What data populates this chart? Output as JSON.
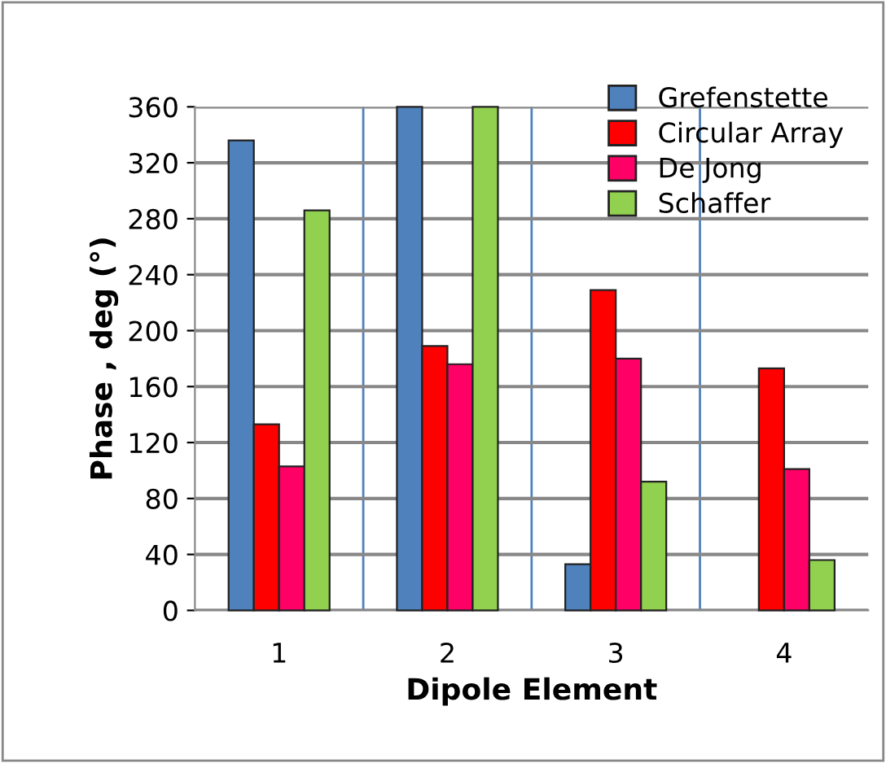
{
  "chart_data": {
    "type": "bar",
    "xlabel": "Dipole Element",
    "ylabel": "Phase , deg (°)",
    "categories": [
      "1",
      "2",
      "3",
      "4"
    ],
    "series": [
      {
        "name": "Grefenstette",
        "color": "#4f81bd",
        "values": [
          336,
          360,
          33,
          null
        ]
      },
      {
        "name": "Circular Array",
        "color": "#ff0000",
        "values": [
          133,
          189,
          229,
          173
        ]
      },
      {
        "name": "De Jong",
        "color": "#ff0066",
        "values": [
          103,
          176,
          180,
          101
        ]
      },
      {
        "name": "Schaffer",
        "color": "#92d050",
        "values": [
          286,
          360,
          92,
          36
        ]
      }
    ],
    "ylim": [
      0,
      360
    ],
    "yticks": [
      0,
      40,
      80,
      120,
      160,
      200,
      240,
      280,
      320,
      360
    ],
    "grid": true,
    "legend": "top right"
  }
}
